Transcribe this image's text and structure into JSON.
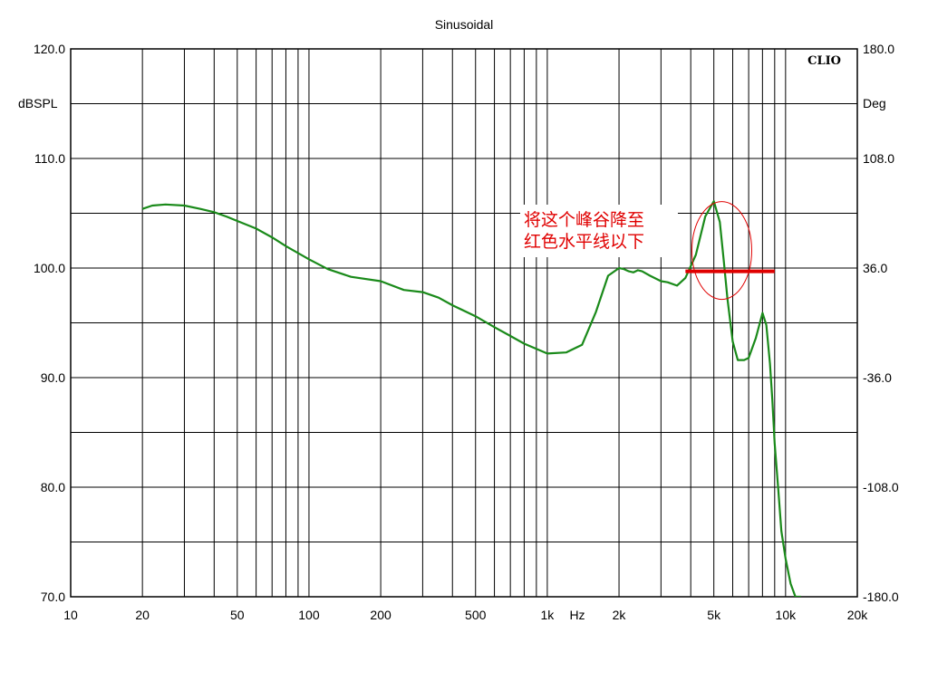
{
  "chart_data": {
    "type": "line",
    "title": "Sinusoidal",
    "brand": "CLIO",
    "left_axis": {
      "unit_label": "dBSPL",
      "range": [
        70,
        120
      ],
      "ticks": [
        70,
        80,
        90,
        100,
        110,
        120
      ],
      "tick_labels": [
        "70.0",
        "80.0",
        "90.0",
        "100.0",
        "110.0",
        "120.0"
      ]
    },
    "right_axis": {
      "unit_label": "Deg",
      "range": [
        -180,
        180
      ],
      "ticks": [
        -180,
        -108,
        -36,
        36,
        108,
        180
      ],
      "tick_labels": [
        "-180.0",
        "-108.0",
        "-36.0",
        "36.0",
        "108.0",
        "180.0"
      ]
    },
    "x_axis": {
      "scale": "log",
      "unit_label": "Hz",
      "range": [
        10,
        20000
      ],
      "ticks": [
        10,
        20,
        50,
        100,
        200,
        500,
        1000,
        2000,
        5000,
        10000,
        20000
      ],
      "tick_labels": [
        "10",
        "20",
        "50",
        "100",
        "200",
        "500",
        "1k",
        "2k",
        "5k",
        "10k",
        "20k"
      ]
    },
    "grid": true,
    "series": [
      {
        "color": "#1a8a1a",
        "x": [
          20,
          22,
          25,
          30,
          35,
          40,
          45,
          50,
          60,
          70,
          80,
          100,
          120,
          150,
          200,
          250,
          300,
          350,
          400,
          500,
          600,
          700,
          800,
          1000,
          1200,
          1400,
          1600,
          1800,
          2000,
          2100,
          2200,
          2300,
          2400,
          2500,
          2700,
          3000,
          3200,
          3500,
          3800,
          4200,
          4600,
          5000,
          5300,
          5500,
          5700,
          6000,
          6300,
          6700,
          7000,
          7500,
          8000,
          8300,
          8600,
          8800,
          9000,
          9300,
          9600,
          10000,
          10500,
          11000,
          11600
        ],
        "y": [
          105.4,
          105.7,
          105.8,
          105.7,
          105.4,
          105.1,
          104.7,
          104.3,
          103.6,
          102.8,
          102.0,
          100.8,
          99.9,
          99.2,
          98.8,
          98.0,
          97.8,
          97.3,
          96.6,
          95.6,
          94.6,
          93.8,
          93.1,
          92.2,
          92.3,
          93.0,
          96.0,
          99.3,
          100.0,
          99.9,
          99.7,
          99.6,
          99.8,
          99.7,
          99.3,
          98.8,
          98.7,
          98.4,
          99.1,
          101.2,
          104.7,
          106.1,
          104.2,
          100.7,
          97.2,
          93.3,
          91.6,
          91.6,
          91.8,
          93.6,
          95.9,
          94.8,
          91.3,
          88.0,
          84.0,
          80.0,
          76.0,
          73.5,
          71.2,
          70.0,
          70.0
        ]
      }
    ],
    "reference_line": {
      "color": "#e00000",
      "y": 99.7,
      "x_start": 3800,
      "x_end": 9000
    },
    "highlight_ellipse": {
      "color": "#e00000",
      "center_x": 5400,
      "center_y": 101.6,
      "note": [
        "将这个峰谷降至",
        "红色水平线以下"
      ]
    }
  }
}
